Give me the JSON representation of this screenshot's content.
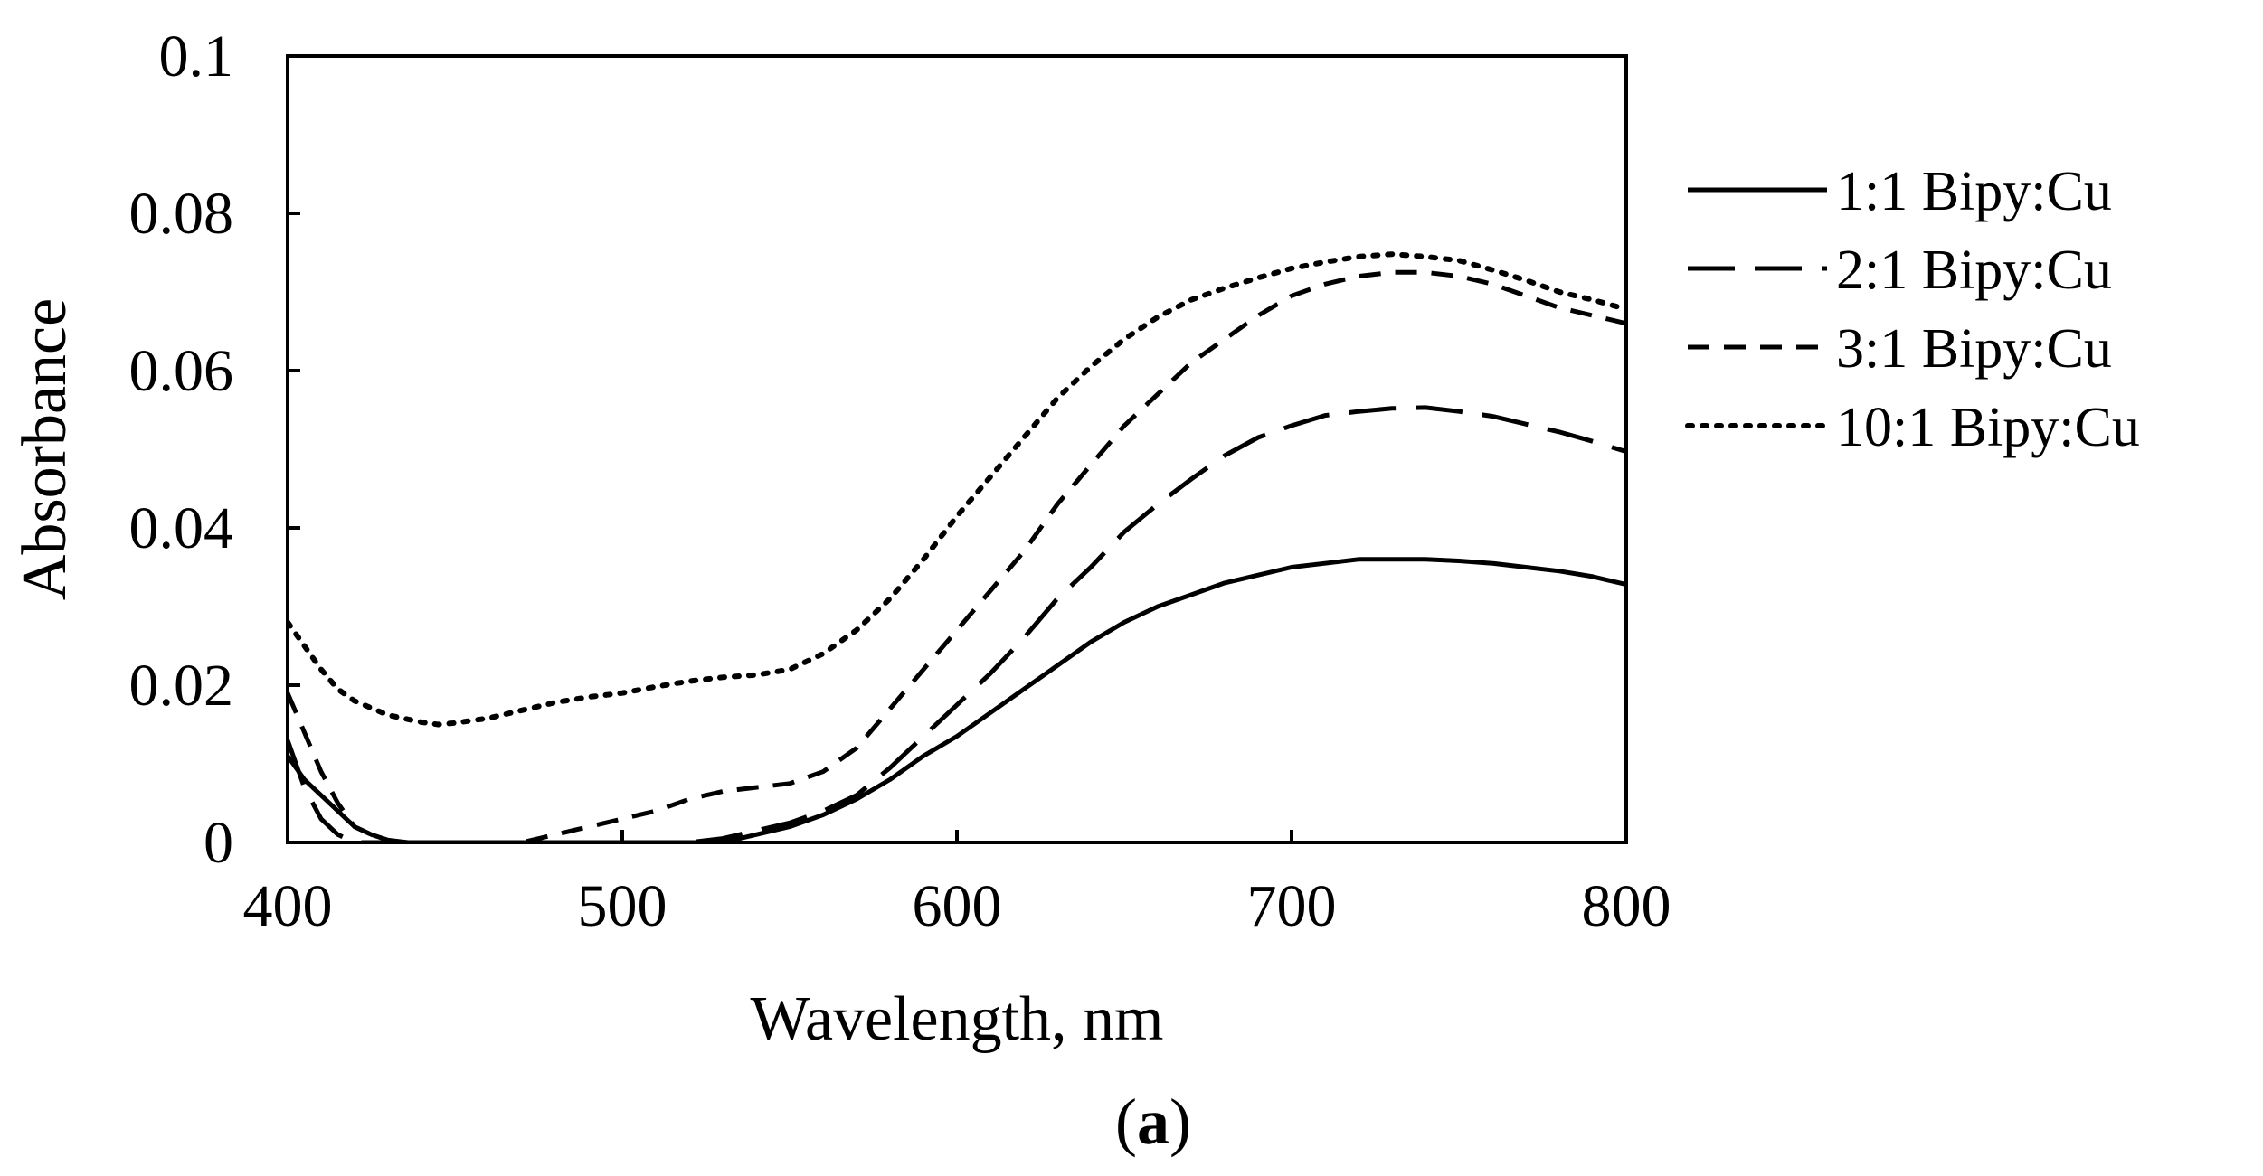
{
  "chart_data": {
    "type": "line",
    "title": "",
    "xlabel": "Wavelength, nm",
    "ylabel": "Absorbance",
    "xlim": [
      400,
      800
    ],
    "ylim": [
      0,
      0.1
    ],
    "xticks": [
      400,
      500,
      600,
      700,
      800
    ],
    "xtick_labels": [
      "400",
      "500",
      "600",
      "700",
      "800"
    ],
    "yticks": [
      0,
      0.02,
      0.04,
      0.06,
      0.08,
      0.1
    ],
    "ytick_labels": [
      "0",
      "0.02",
      "0.04",
      "0.06",
      "0.08",
      "0.1"
    ],
    "grid": false,
    "legend_position": "right",
    "panel_label": "a",
    "colors": {
      "series": "#000000",
      "axis": "#000000"
    },
    "series": [
      {
        "name": "1:1 Bipy:Cu",
        "style": "solid",
        "x": [
          400,
          405,
          410,
          415,
          420,
          425,
          430,
          436,
          450,
          480,
          500,
          510,
          520,
          530,
          540,
          550,
          560,
          570,
          580,
          590,
          600,
          610,
          620,
          630,
          640,
          650,
          660,
          670,
          680,
          690,
          700,
          710,
          720,
          730,
          740,
          750,
          760,
          770,
          780,
          790,
          800
        ],
        "y": [
          0.011,
          0.008,
          0.006,
          0.004,
          0.002,
          0.001,
          0.0003,
          0,
          0,
          0,
          0,
          0,
          0,
          0,
          0.001,
          0.002,
          0.0035,
          0.0055,
          0.008,
          0.011,
          0.0135,
          0.0165,
          0.0195,
          0.0225,
          0.0255,
          0.028,
          0.03,
          0.0315,
          0.033,
          0.034,
          0.035,
          0.0355,
          0.036,
          0.036,
          0.036,
          0.0358,
          0.0355,
          0.035,
          0.0345,
          0.0338,
          0.0328
        ]
      },
      {
        "name": "2:1 Bipy:Cu",
        "style": "longdash",
        "x": [
          400,
          405,
          410,
          415,
          420,
          460,
          500,
          520,
          530,
          540,
          550,
          560,
          570,
          580,
          590,
          600,
          610,
          620,
          630,
          640,
          650,
          660,
          670,
          680,
          690,
          700,
          710,
          720,
          730,
          740,
          750,
          760,
          770,
          780,
          790,
          800
        ],
        "y": [
          0.013,
          0.007,
          0.003,
          0.001,
          0,
          0,
          0,
          0,
          0.0005,
          0.0015,
          0.0025,
          0.004,
          0.006,
          0.0095,
          0.0135,
          0.0175,
          0.0215,
          0.026,
          0.031,
          0.035,
          0.0395,
          0.043,
          0.0462,
          0.0492,
          0.0515,
          0.053,
          0.0543,
          0.0548,
          0.0552,
          0.0553,
          0.0548,
          0.0542,
          0.0532,
          0.0522,
          0.051,
          0.0497
        ]
      },
      {
        "name": "3:1 Bipy:Cu",
        "style": "shortdash",
        "x": [
          400,
          405,
          410,
          415,
          420,
          430,
          450,
          470,
          480,
          490,
          500,
          510,
          520,
          530,
          540,
          550,
          560,
          570,
          580,
          590,
          600,
          610,
          620,
          630,
          640,
          650,
          660,
          670,
          680,
          690,
          700,
          710,
          720,
          730,
          740,
          750,
          760,
          770,
          780,
          790,
          800
        ],
        "y": [
          0.019,
          0.014,
          0.009,
          0.005,
          0.002,
          0,
          0,
          0,
          0.001,
          0.002,
          0.003,
          0.004,
          0.0055,
          0.0065,
          0.007,
          0.0075,
          0.009,
          0.012,
          0.017,
          0.022,
          0.027,
          0.032,
          0.037,
          0.043,
          0.048,
          0.053,
          0.057,
          0.061,
          0.064,
          0.067,
          0.0695,
          0.071,
          0.072,
          0.0725,
          0.0725,
          0.072,
          0.071,
          0.0695,
          0.068,
          0.067,
          0.066
        ]
      },
      {
        "name": "10:1 Bipy:Cu",
        "style": "dotted",
        "x": [
          400,
          405,
          410,
          415,
          420,
          430,
          440,
          445,
          450,
          460,
          470,
          480,
          490,
          500,
          510,
          520,
          530,
          540,
          550,
          560,
          570,
          580,
          590,
          600,
          610,
          620,
          630,
          640,
          650,
          660,
          670,
          680,
          690,
          700,
          710,
          720,
          730,
          740,
          750,
          760,
          770,
          780,
          790,
          800
        ],
        "y": [
          0.028,
          0.025,
          0.022,
          0.0195,
          0.018,
          0.0162,
          0.0153,
          0.015,
          0.0152,
          0.0158,
          0.0168,
          0.0178,
          0.0185,
          0.019,
          0.0198,
          0.0205,
          0.021,
          0.0213,
          0.022,
          0.024,
          0.027,
          0.031,
          0.036,
          0.0415,
          0.0465,
          0.0515,
          0.0565,
          0.0605,
          0.064,
          0.0668,
          0.069,
          0.0705,
          0.0718,
          0.073,
          0.0738,
          0.0745,
          0.0748,
          0.0745,
          0.074,
          0.0728,
          0.0715,
          0.07,
          0.069,
          0.0678
        ]
      }
    ]
  }
}
